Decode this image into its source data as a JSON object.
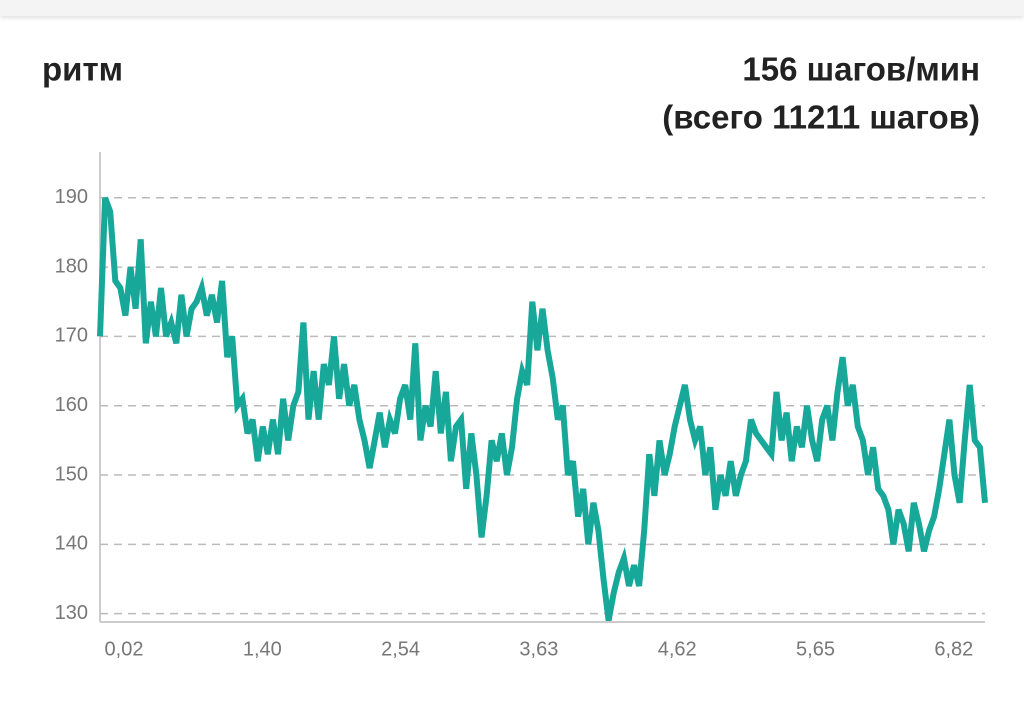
{
  "chart_data": {
    "type": "line",
    "title": "ритм",
    "annotations": [
      "156 шагов/мин",
      "(всего 11211 шагов)"
    ],
    "x_tick_labels": [
      "0,02",
      "1,40",
      "2,54",
      "3,63",
      "4,62",
      "5,65",
      "6,82"
    ],
    "values": [
      170,
      190,
      188,
      178,
      177,
      173,
      180,
      174,
      184,
      169,
      175,
      170,
      177,
      170,
      172,
      169,
      176,
      170,
      174,
      175,
      177,
      173,
      176,
      172,
      178,
      167,
      170,
      160,
      161,
      156,
      158,
      152,
      157,
      153,
      158,
      153,
      161,
      155,
      160,
      162,
      172,
      158,
      165,
      158,
      166,
      163,
      170,
      161,
      166,
      160,
      163,
      158,
      155,
      151,
      155,
      159,
      154,
      158,
      156,
      161,
      163,
      158,
      169,
      155,
      160,
      157,
      165,
      156,
      162,
      152,
      157,
      158,
      148,
      156,
      150,
      141,
      147,
      155,
      152,
      156,
      150,
      154,
      161,
      165,
      163,
      175,
      168,
      174,
      168,
      164,
      158,
      160,
      150,
      152,
      144,
      148,
      140,
      146,
      142,
      135,
      129,
      133,
      136,
      138,
      134,
      137,
      134,
      142,
      153,
      147,
      155,
      150,
      153,
      157,
      160,
      163,
      158,
      155,
      157,
      150,
      154,
      145,
      150,
      147,
      152,
      147,
      150,
      152,
      158,
      156,
      155,
      154,
      153,
      162,
      155,
      159,
      152,
      157,
      154,
      160,
      155,
      152,
      158,
      160,
      155,
      162,
      167,
      160,
      163,
      157,
      155,
      150,
      154,
      148,
      147,
      145,
      140,
      145,
      143,
      139,
      146,
      143,
      139,
      142,
      144,
      148,
      153,
      158,
      150,
      146,
      155,
      163,
      155,
      154,
      146
    ],
    "color": "#17a89a",
    "ylim": [
      128.8,
      196.6
    ],
    "yticks": [
      130,
      140,
      150,
      160,
      170,
      180,
      190
    ],
    "grid": true
  }
}
